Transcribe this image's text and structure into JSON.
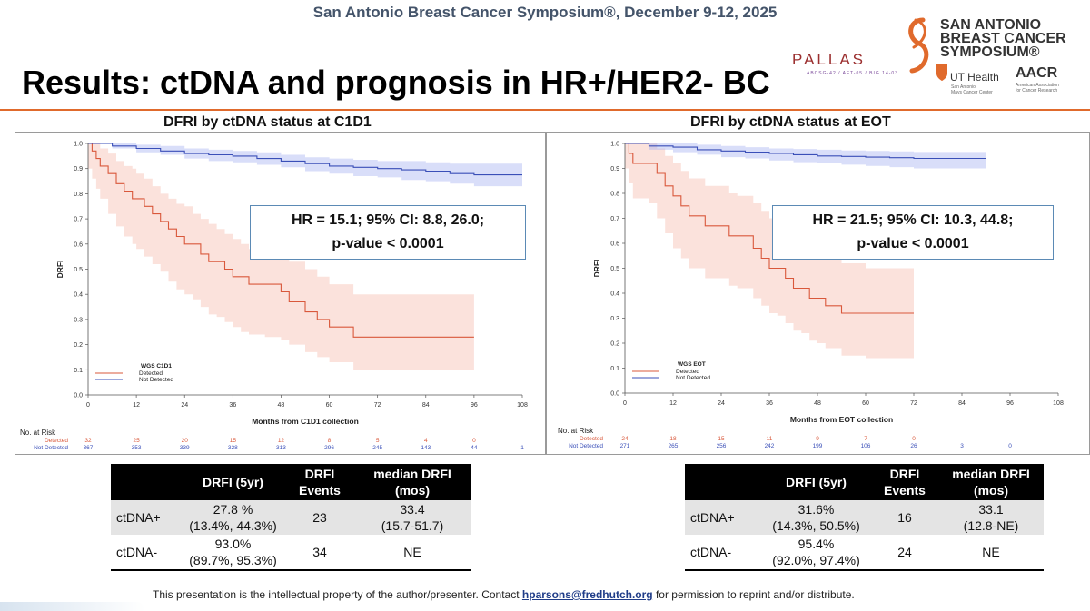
{
  "header": {
    "conference": "San Antonio Breast Cancer Symposium®, December 9-12, 2025",
    "title": "Results: ctDNA and prognosis in HR+/HER2- BC",
    "pallas": "PALLAS",
    "pallas_sub": "ABCSG-42 / AFT-05 / BIG 14-03",
    "sabcs_logo": [
      "SAN ANTONIO",
      "BREAST CANCER",
      "SYMPOSIUM®"
    ],
    "ut_health": "UT Health",
    "ut_sub": [
      "San Antonio",
      "Mays Cancer Center"
    ],
    "aacr": "AACR",
    "aacr_sub": [
      "American Association",
      "for Cancer Research"
    ]
  },
  "colors": {
    "detected": "#d9583b",
    "not_detected": "#3a4fb8",
    "accent": "#e06a2c"
  },
  "chart_data": [
    {
      "type": "line",
      "title": "DFRI by ctDNA status at C1D1",
      "xlabel": "Months from C1D1 collection",
      "ylabel": "DRFI",
      "xlim": [
        0,
        108
      ],
      "ylim": [
        0,
        1.0
      ],
      "xticks": [
        0,
        12,
        24,
        36,
        48,
        60,
        72,
        84,
        96,
        108
      ],
      "yticks": [
        0.0,
        0.1,
        0.2,
        0.3,
        0.4,
        0.5,
        0.6,
        0.7,
        0.8,
        0.9,
        1.0
      ],
      "legend": {
        "title": "WGS C1D1",
        "position": "bottom-left",
        "entries": [
          "Detected",
          "Not Detected"
        ]
      },
      "annotation": [
        "HR = 15.1; 95% CI: 8.8, 26.0;",
        "p-value < 0.0001"
      ],
      "risk_table": {
        "label": "No. at Risk",
        "rows": [
          {
            "name": "Detected",
            "values": [
              "32",
              "25",
              "20",
              "15",
              "12",
              "8",
              "5",
              "4",
              "0",
              ""
            ]
          },
          {
            "name": "Not Detected",
            "values": [
              "367",
              "353",
              "339",
              "328",
              "313",
              "296",
              "245",
              "143",
              "44",
              "1"
            ]
          }
        ]
      },
      "series": [
        {
          "name": "Detected",
          "x": [
            0,
            1,
            2,
            3,
            5,
            7,
            9,
            11,
            12,
            14,
            16,
            18,
            20,
            22,
            24,
            26,
            28,
            30,
            32,
            34,
            36,
            38,
            40,
            44,
            48,
            50,
            54,
            57,
            60,
            66,
            72,
            84,
            96
          ],
          "y": [
            1.0,
            0.97,
            0.94,
            0.91,
            0.88,
            0.84,
            0.81,
            0.78,
            0.78,
            0.75,
            0.72,
            0.69,
            0.66,
            0.63,
            0.6,
            0.6,
            0.56,
            0.53,
            0.53,
            0.5,
            0.47,
            0.47,
            0.44,
            0.44,
            0.41,
            0.37,
            0.33,
            0.3,
            0.27,
            0.23,
            0.23,
            0.23,
            0.23
          ],
          "ci_upper": [
            1.0,
            1.0,
            1.0,
            0.98,
            0.96,
            0.93,
            0.91,
            0.9,
            0.88,
            0.86,
            0.83,
            0.8,
            0.78,
            0.76,
            0.75,
            0.72,
            0.7,
            0.68,
            0.66,
            0.64,
            0.62,
            0.6,
            0.58,
            0.57,
            0.56,
            0.53,
            0.5,
            0.47,
            0.44,
            0.4,
            0.4,
            0.4,
            0.4
          ],
          "ci_lower": [
            0.9,
            0.86,
            0.82,
            0.78,
            0.72,
            0.67,
            0.63,
            0.6,
            0.58,
            0.55,
            0.52,
            0.49,
            0.45,
            0.42,
            0.4,
            0.38,
            0.35,
            0.32,
            0.31,
            0.29,
            0.27,
            0.25,
            0.24,
            0.23,
            0.22,
            0.2,
            0.17,
            0.15,
            0.13,
            0.1,
            0.1,
            0.1,
            0.1
          ]
        },
        {
          "name": "Not Detected",
          "x": [
            0,
            6,
            12,
            18,
            24,
            30,
            36,
            42,
            48,
            54,
            60,
            66,
            72,
            78,
            84,
            90,
            96,
            108
          ],
          "y": [
            1.0,
            0.99,
            0.98,
            0.97,
            0.96,
            0.955,
            0.95,
            0.94,
            0.93,
            0.92,
            0.91,
            0.905,
            0.9,
            0.895,
            0.89,
            0.88,
            0.875,
            0.875
          ],
          "ci_upper": [
            1.0,
            1.0,
            0.995,
            0.99,
            0.98,
            0.975,
            0.97,
            0.965,
            0.955,
            0.945,
            0.94,
            0.935,
            0.93,
            0.93,
            0.925,
            0.92,
            0.92,
            0.92
          ],
          "ci_lower": [
            1.0,
            0.98,
            0.965,
            0.955,
            0.94,
            0.93,
            0.925,
            0.915,
            0.905,
            0.89,
            0.88,
            0.87,
            0.865,
            0.855,
            0.85,
            0.84,
            0.83,
            0.83
          ]
        }
      ]
    },
    {
      "type": "line",
      "title": "DFRI by ctDNA status at EOT",
      "xlabel": "Months from EOT collection",
      "ylabel": "DRFI",
      "xlim": [
        0,
        108
      ],
      "ylim": [
        0,
        1.0
      ],
      "xticks": [
        0,
        12,
        24,
        36,
        48,
        60,
        72,
        84,
        96,
        108
      ],
      "yticks": [
        0.0,
        0.1,
        0.2,
        0.3,
        0.4,
        0.5,
        0.6,
        0.7,
        0.8,
        0.9,
        1.0
      ],
      "legend": {
        "title": "WGS EOT",
        "position": "bottom-left",
        "entries": [
          "Detected",
          "Not Detected"
        ]
      },
      "annotation": [
        "HR = 21.5; 95% CI: 10.3, 44.8;",
        "p-value < 0.0001"
      ],
      "risk_table": {
        "label": "No. at Risk",
        "rows": [
          {
            "name": "Detected",
            "values": [
              "24",
              "18",
              "15",
              "11",
              "9",
              "7",
              "0",
              "",
              "",
              ""
            ]
          },
          {
            "name": "Not Detected",
            "values": [
              "271",
              "265",
              "256",
              "242",
              "199",
              "106",
              "26",
              "3",
              "0",
              ""
            ]
          }
        ]
      },
      "series": [
        {
          "name": "Detected",
          "x": [
            0,
            1,
            2,
            6,
            8,
            10,
            12,
            14,
            16,
            20,
            26,
            28,
            32,
            34,
            36,
            38,
            40,
            42,
            44,
            46,
            48,
            50,
            54,
            60,
            72
          ],
          "y": [
            1.0,
            0.96,
            0.92,
            0.92,
            0.88,
            0.83,
            0.79,
            0.75,
            0.71,
            0.67,
            0.63,
            0.63,
            0.58,
            0.54,
            0.5,
            0.5,
            0.46,
            0.42,
            0.42,
            0.38,
            0.38,
            0.35,
            0.32,
            0.32,
            0.32
          ],
          "ci_upper": [
            1.0,
            1.0,
            1.0,
            1.0,
            0.98,
            0.95,
            0.92,
            0.89,
            0.86,
            0.83,
            0.8,
            0.79,
            0.76,
            0.73,
            0.7,
            0.69,
            0.66,
            0.63,
            0.62,
            0.59,
            0.58,
            0.55,
            0.52,
            0.5,
            0.5
          ],
          "ci_lower": [
            0.9,
            0.84,
            0.78,
            0.76,
            0.7,
            0.64,
            0.58,
            0.54,
            0.5,
            0.46,
            0.43,
            0.42,
            0.38,
            0.35,
            0.32,
            0.31,
            0.28,
            0.25,
            0.24,
            0.21,
            0.2,
            0.18,
            0.15,
            0.14,
            0.14
          ]
        },
        {
          "name": "Not Detected",
          "x": [
            0,
            6,
            12,
            18,
            24,
            30,
            36,
            42,
            48,
            54,
            60,
            66,
            72,
            78,
            84,
            90
          ],
          "y": [
            1.0,
            0.99,
            0.985,
            0.975,
            0.97,
            0.965,
            0.96,
            0.955,
            0.95,
            0.948,
            0.945,
            0.943,
            0.94,
            0.94,
            0.94,
            0.94
          ],
          "ci_upper": [
            1.0,
            1.0,
            1.0,
            0.995,
            0.99,
            0.985,
            0.98,
            0.978,
            0.975,
            0.972,
            0.97,
            0.968,
            0.966,
            0.966,
            0.966,
            0.966
          ],
          "ci_lower": [
            1.0,
            0.975,
            0.965,
            0.955,
            0.945,
            0.94,
            0.932,
            0.925,
            0.92,
            0.915,
            0.91,
            0.905,
            0.9,
            0.9,
            0.9,
            0.9
          ]
        }
      ]
    }
  ],
  "tables": [
    {
      "headers": [
        "",
        "DRFI (5yr)",
        "DRFI Events",
        "median DRFI (mos)"
      ],
      "rows": [
        {
          "label": "ctDNA+",
          "drfi": "27.8 %",
          "ci": "(13.4%, 44.3%)",
          "events": "23",
          "median": "33.4",
          "median_ci": "(15.7-51.7)"
        },
        {
          "label": "ctDNA-",
          "drfi": "93.0%",
          "ci": "(89.7%, 95.3%)",
          "events": "34",
          "median": "NE",
          "median_ci": ""
        }
      ]
    },
    {
      "headers": [
        "",
        "DRFI (5yr)",
        "DRFI Events",
        "median DRFI (mos)"
      ],
      "rows": [
        {
          "label": "ctDNA+",
          "drfi": "31.6%",
          "ci": "(14.3%, 50.5%)",
          "events": "16",
          "median": "33.1",
          "median_ci": "(12.8-NE)"
        },
        {
          "label": "ctDNA-",
          "drfi": "95.4%",
          "ci": "(92.0%, 97.4%)",
          "events": "24",
          "median": "NE",
          "median_ci": ""
        }
      ]
    }
  ],
  "footer": {
    "text_before": "This presentation is the intellectual property of the author/presenter. Contact ",
    "email": "hparsons@fredhutch.org",
    "text_after": " for permission to reprint and/or distribute."
  }
}
